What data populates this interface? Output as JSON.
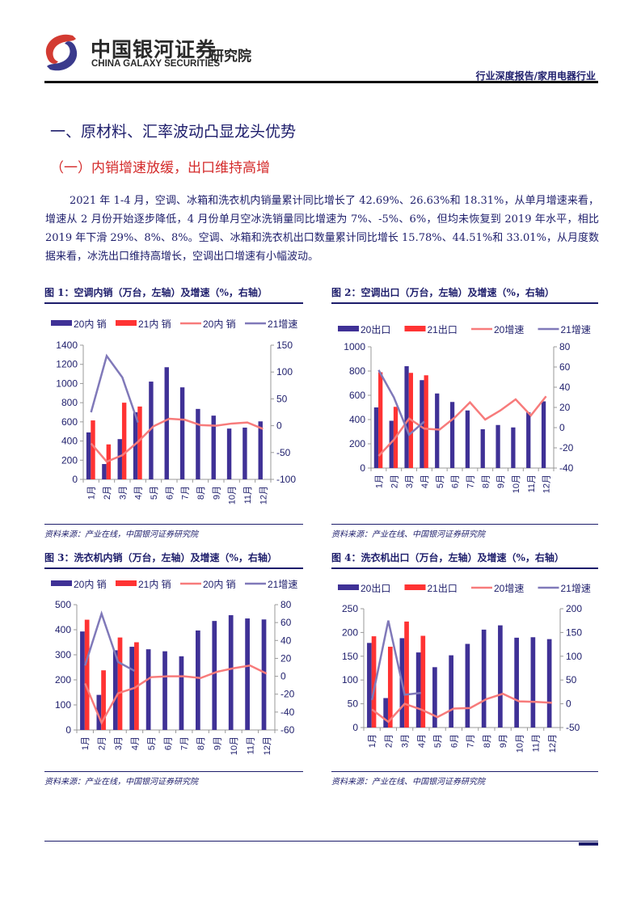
{
  "header": {
    "brand_cn": "中国银河证券",
    "brand_en": "CHINA GALAXY SECURITIES",
    "institute": "研究院",
    "report_type": "行业深度报告/家用电器行业"
  },
  "section_title": "一、原材料、汇率波动凸显龙头优势",
  "subsection_title": "（一）内销增速放缓，出口维持高增",
  "paragraph": "2021 年 1-4 月，空调、冰箱和洗衣机内销量累计同比增长了 42.69%、26.63%和 18.31%，从单月增速来看，增速从 2 月份开始逐步降低，4 月份单月空冰洗销量同比增速为 7%、-5%、6%，但均未恢复到 2019 年水平，相比 2019 年下滑 29%、8%、8%。空调、冰箱和洗衣机出口数量累计同比增长 15.78%、44.51%和 33.01%，从月度数据来看，冰洗出口维持高增长，空调出口增速有小幅波动。",
  "colors": {
    "bar20": "#3f3196",
    "bar21": "#ff3333",
    "line20": "#f77b7b",
    "line21": "#8079b9"
  },
  "chart_data": [
    {
      "title": "图 1：空调内销（万台，左轴）及增速（%，右轴）",
      "source": "资料来源：产业在线，中国银河证券研究院",
      "type": "bar+line",
      "categories": [
        "1月",
        "2月",
        "3月",
        "4月",
        "5月",
        "6月",
        "7月",
        "8月",
        "9月",
        "10月",
        "11月",
        "12月"
      ],
      "legend": [
        "20内 销",
        "21内 销",
        "20内 销",
        "21增速"
      ],
      "y_left": {
        "min": 0,
        "max": 1400,
        "ticks": [
          0,
          200,
          400,
          600,
          800,
          1000,
          1200,
          1400
        ]
      },
      "y_right": {
        "min": -100,
        "max": 150,
        "ticks": [
          -100,
          -50,
          0,
          50,
          100,
          150
        ]
      },
      "bars20": [
        490,
        160,
        420,
        700,
        1020,
        1170,
        960,
        735,
        665,
        530,
        540,
        605
      ],
      "bars21": [
        615,
        365,
        800,
        760
      ],
      "line20": [
        -33,
        -67,
        -55,
        -30,
        -1,
        13,
        11,
        1,
        0,
        4,
        6,
        -6
      ],
      "line21": [
        25,
        130,
        90,
        6
      ]
    },
    {
      "title": "图 2：空调出口（万台，左轴）及增速（%，右轴）",
      "source": "资料来源：产业在线、中国银河证券研究院",
      "type": "bar+line",
      "categories": [
        "1月",
        "2月",
        "3月",
        "4月",
        "5月",
        "6月",
        "7月",
        "8月",
        "9月",
        "10月",
        "11月",
        "12月"
      ],
      "legend": [
        "20出口",
        "21出口",
        "20增速",
        "21增速"
      ],
      "y_left": {
        "min": 0,
        "max": 1000,
        "ticks": [
          0,
          200,
          400,
          600,
          800,
          1000
        ]
      },
      "y_right": {
        "min": -40,
        "max": 80,
        "ticks": [
          -40,
          -20,
          0,
          20,
          40,
          60,
          80
        ]
      },
      "bars20": [
        500,
        390,
        840,
        725,
        615,
        545,
        475,
        320,
        355,
        335,
        460,
        550
      ],
      "bars21": [
        790,
        505,
        785,
        765
      ],
      "line20": [
        -28,
        -12,
        9,
        -1,
        -2,
        10,
        25,
        8,
        17,
        28,
        12,
        31
      ],
      "line21": [
        57,
        30,
        -7,
        6
      ]
    },
    {
      "title": "图 3：洗衣机内销（万台，左轴）及增速（%，右轴）",
      "source": "资料来源：产业在线，中国银河证券研究院",
      "type": "bar+line",
      "categories": [
        "1月",
        "2月",
        "3月",
        "4月",
        "5月",
        "6月",
        "7月",
        "8月",
        "9月",
        "10月",
        "11月",
        "12月"
      ],
      "legend": [
        "20内 销",
        "21内 销",
        "20内 销",
        "21增速"
      ],
      "y_left": {
        "min": 0,
        "max": 500,
        "ticks": [
          0,
          100,
          200,
          300,
          400,
          500
        ]
      },
      "y_right": {
        "min": -60,
        "max": 80,
        "ticks": [
          -60,
          -40,
          -20,
          0,
          20,
          40,
          60,
          80
        ]
      },
      "bars20": [
        393,
        140,
        318,
        332,
        322,
        314,
        294,
        397,
        435,
        458,
        445,
        441
      ],
      "bars21": [
        440,
        238,
        369,
        350
      ],
      "line20": [
        -8,
        -52,
        -19,
        -13,
        -1,
        0,
        0,
        -2,
        5,
        9,
        12,
        3
      ],
      "line21": [
        12,
        70,
        16,
        6
      ]
    },
    {
      "title": "图 4：洗衣机出口（万台，左轴）及增速（%，右轴）",
      "source": "资料来源：产业在线、中国银河证券研究院",
      "type": "bar+line",
      "categories": [
        "1月",
        "2月",
        "3月",
        "4月",
        "5月",
        "6月",
        "7月",
        "8月",
        "9月",
        "10月",
        "11月",
        "12月"
      ],
      "legend": [
        "20出口",
        "21出口",
        "20增速",
        "21增速"
      ],
      "y_left": {
        "min": 0,
        "max": 250,
        "ticks": [
          0,
          50,
          100,
          150,
          200,
          250
        ]
      },
      "y_right": {
        "min": -50,
        "max": 200,
        "ticks": [
          -50,
          0,
          50,
          100,
          150,
          200
        ]
      },
      "bars20": [
        178,
        62,
        188,
        158,
        127,
        152,
        176,
        206,
        215,
        189,
        190,
        186
      ],
      "bars21": [
        192,
        170,
        223,
        193
      ],
      "line20": [
        -12,
        -38,
        0,
        -12,
        -28,
        -10,
        -9,
        10,
        21,
        5,
        4,
        2
      ],
      "line21": [
        8,
        175,
        19,
        23
      ]
    }
  ]
}
